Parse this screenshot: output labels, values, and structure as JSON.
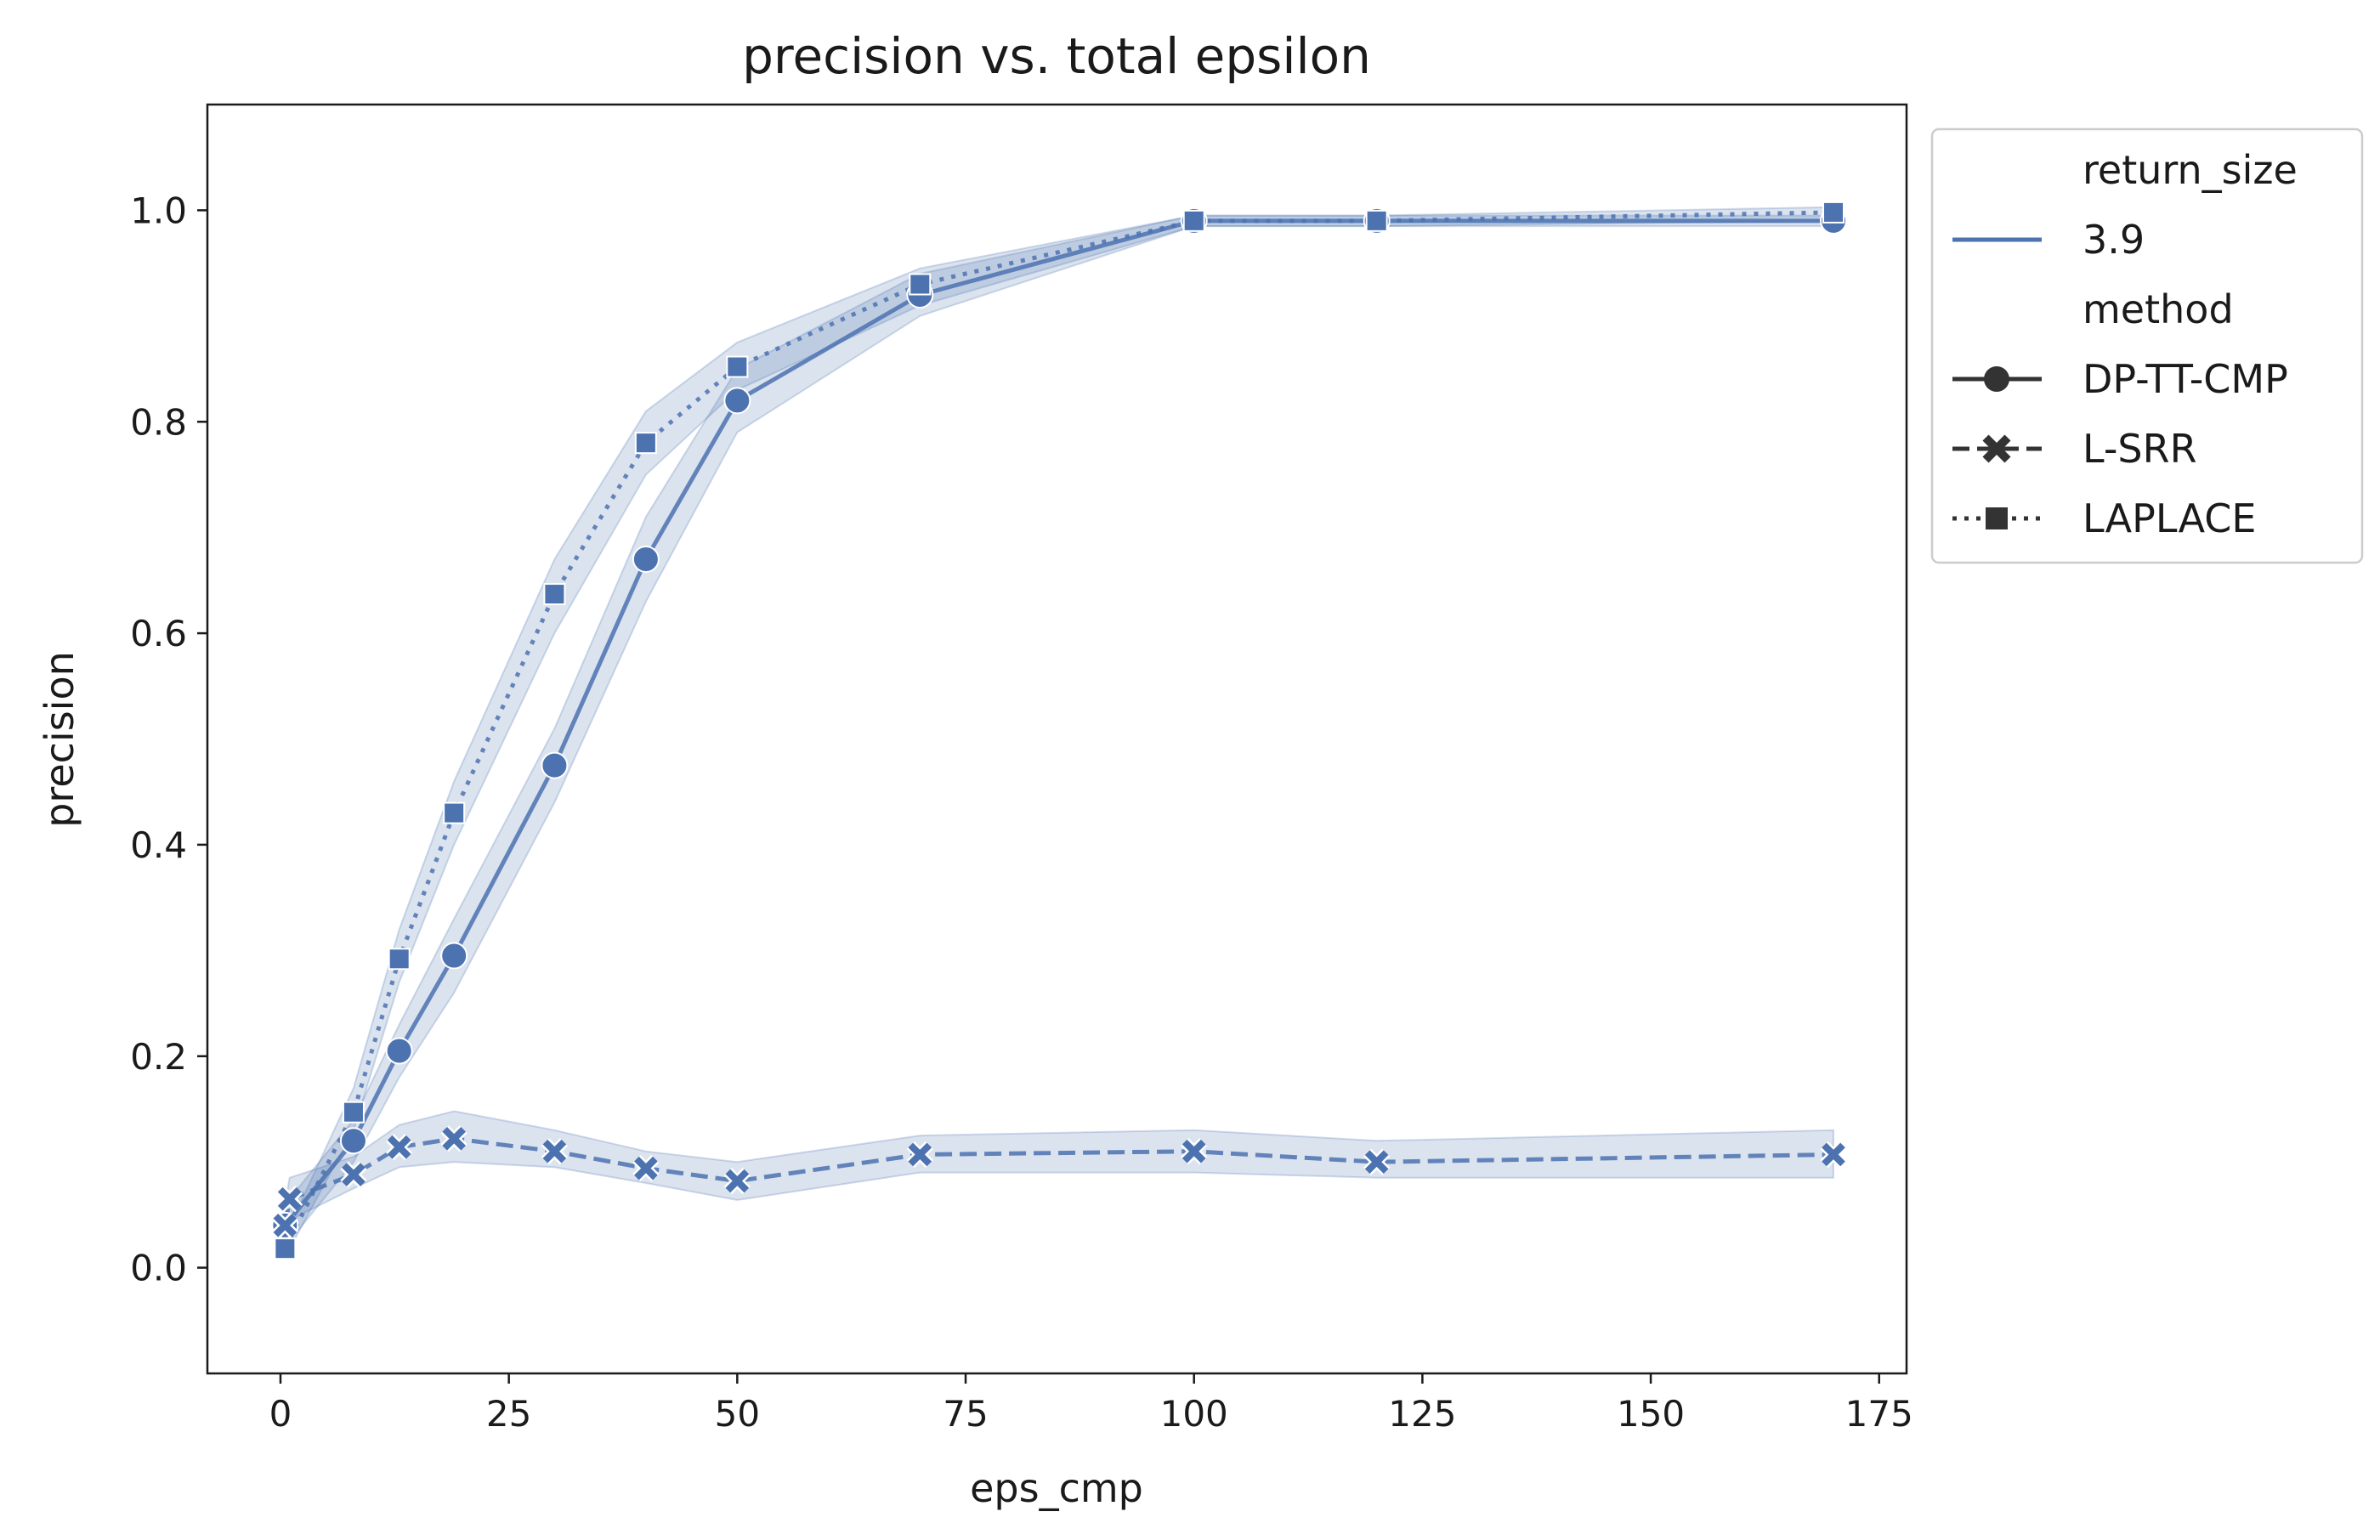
{
  "chart_data": {
    "type": "line",
    "title": "precision vs. total epsilon",
    "xlabel": "eps_cmp",
    "ylabel": "precision",
    "xlim": [
      -8,
      178
    ],
    "ylim": [
      -0.1,
      1.1
    ],
    "xticks": [
      0,
      25,
      50,
      75,
      100,
      125,
      150,
      175
    ],
    "yticks": [
      0.0,
      0.2,
      0.4,
      0.6,
      0.8,
      1.0
    ],
    "xtick_labels": [
      "0",
      "25",
      "50",
      "75",
      "100",
      "125",
      "150",
      "175"
    ],
    "ytick_labels": [
      "0.0",
      "0.2",
      "0.4",
      "0.6",
      "0.8",
      "1.0"
    ],
    "grid": false,
    "color": "#4c72b0",
    "legend": {
      "placement": "outside-upper-right",
      "hue_title": "return_size",
      "hue_entries": [
        {
          "label": "3.9",
          "color": "#4c72b0"
        }
      ],
      "style_title": "method",
      "style_entries": [
        {
          "label": "DP-TT-CMP",
          "marker": "circle",
          "dash": "solid"
        },
        {
          "label": "L-SRR",
          "marker": "x",
          "dash": "dashed"
        },
        {
          "label": "LAPLACE",
          "marker": "square",
          "dash": "dotted"
        }
      ]
    },
    "series": [
      {
        "name": "DP-TT-CMP",
        "marker": "circle",
        "dash": "solid",
        "x": [
          0.5,
          8,
          13,
          19,
          30,
          40,
          50,
          70,
          100,
          120,
          170
        ],
        "y": [
          0.04,
          0.12,
          0.205,
          0.295,
          0.475,
          0.67,
          0.82,
          0.92,
          0.99,
          0.99,
          0.99
        ],
        "ci_low": [
          0.02,
          0.1,
          0.18,
          0.26,
          0.44,
          0.63,
          0.79,
          0.9,
          0.985,
          0.985,
          0.985
        ],
        "ci_high": [
          0.06,
          0.14,
          0.23,
          0.33,
          0.51,
          0.71,
          0.85,
          0.94,
          0.995,
          0.995,
          0.995
        ]
      },
      {
        "name": "L-SRR",
        "marker": "x",
        "dash": "dashed",
        "x": [
          0.5,
          1,
          8,
          13,
          19,
          30,
          40,
          50,
          70,
          100,
          120,
          170
        ],
        "y": [
          0.04,
          0.065,
          0.088,
          0.114,
          0.122,
          0.11,
          0.094,
          0.082,
          0.107,
          0.11,
          0.1,
          0.107
        ],
        "ci_low": [
          0.02,
          0.045,
          0.075,
          0.095,
          0.1,
          0.095,
          0.08,
          0.064,
          0.09,
          0.09,
          0.085,
          0.085
        ],
        "ci_high": [
          0.06,
          0.085,
          0.105,
          0.135,
          0.148,
          0.13,
          0.11,
          0.1,
          0.125,
          0.13,
          0.12,
          0.13
        ]
      },
      {
        "name": "LAPLACE",
        "marker": "square",
        "dash": "dotted",
        "x": [
          0.5,
          8,
          13,
          19,
          30,
          40,
          50,
          70,
          100,
          120,
          170
        ],
        "y": [
          0.018,
          0.147,
          0.292,
          0.43,
          0.637,
          0.78,
          0.852,
          0.93,
          0.99,
          0.99,
          0.998
        ],
        "ci_low": [
          0.01,
          0.13,
          0.27,
          0.4,
          0.6,
          0.75,
          0.83,
          0.91,
          0.985,
          0.985,
          0.99
        ],
        "ci_high": [
          0.03,
          0.17,
          0.32,
          0.46,
          0.67,
          0.81,
          0.875,
          0.945,
          0.995,
          0.995,
          1.003
        ]
      }
    ]
  }
}
